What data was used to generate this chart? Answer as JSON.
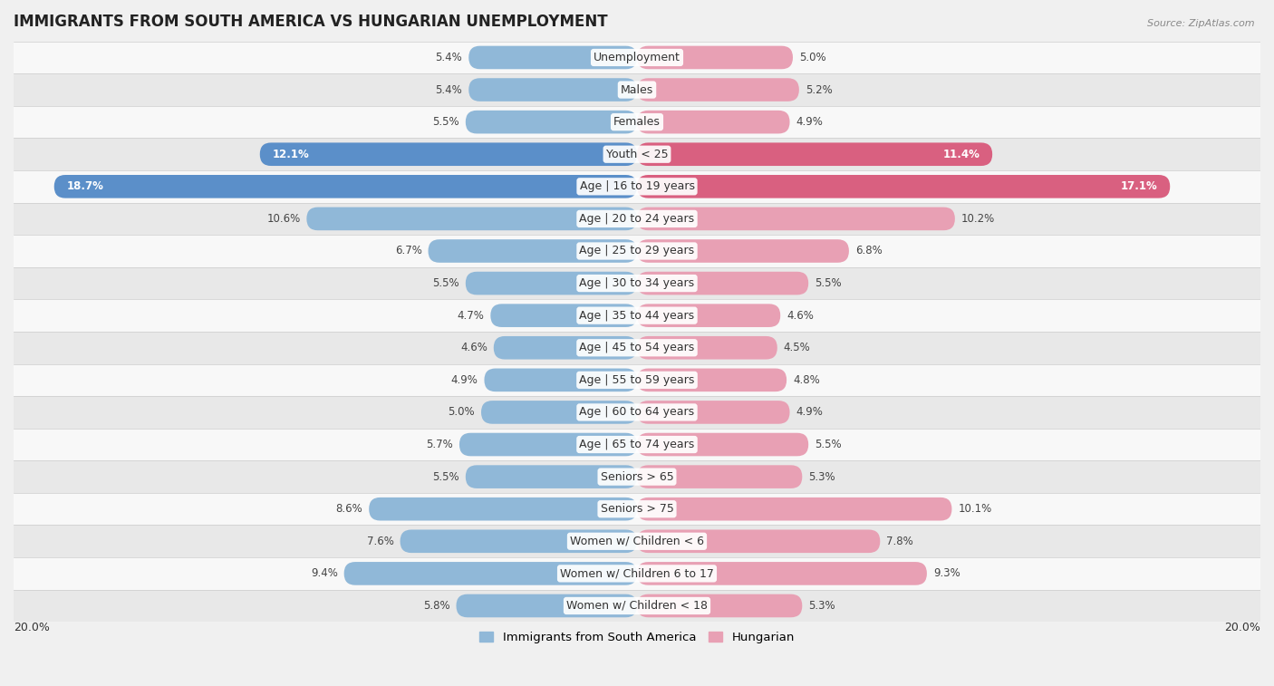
{
  "title": "IMMIGRANTS FROM SOUTH AMERICA VS HUNGARIAN UNEMPLOYMENT",
  "source": "Source: ZipAtlas.com",
  "categories": [
    "Unemployment",
    "Males",
    "Females",
    "Youth < 25",
    "Age | 16 to 19 years",
    "Age | 20 to 24 years",
    "Age | 25 to 29 years",
    "Age | 30 to 34 years",
    "Age | 35 to 44 years",
    "Age | 45 to 54 years",
    "Age | 55 to 59 years",
    "Age | 60 to 64 years",
    "Age | 65 to 74 years",
    "Seniors > 65",
    "Seniors > 75",
    "Women w/ Children < 6",
    "Women w/ Children 6 to 17",
    "Women w/ Children < 18"
  ],
  "left_values": [
    5.4,
    5.4,
    5.5,
    12.1,
    18.7,
    10.6,
    6.7,
    5.5,
    4.7,
    4.6,
    4.9,
    5.0,
    5.7,
    5.5,
    8.6,
    7.6,
    9.4,
    5.8
  ],
  "right_values": [
    5.0,
    5.2,
    4.9,
    11.4,
    17.1,
    10.2,
    6.8,
    5.5,
    4.6,
    4.5,
    4.8,
    4.9,
    5.5,
    5.3,
    10.1,
    7.8,
    9.3,
    5.3
  ],
  "left_color": "#90b8d8",
  "right_color": "#e8a0b4",
  "left_label": "Immigrants from South America",
  "right_label": "Hungarian",
  "left_highlight_color": "#5b8fc9",
  "right_highlight_color": "#d96080",
  "highlight_rows": [
    3,
    4
  ],
  "xlim": 20.0,
  "background_color": "#f0f0f0",
  "row_bg_even": "#f8f8f8",
  "row_bg_odd": "#e8e8e8",
  "title_fontsize": 12,
  "label_fontsize": 9,
  "value_fontsize": 8.5,
  "bar_height": 0.72
}
